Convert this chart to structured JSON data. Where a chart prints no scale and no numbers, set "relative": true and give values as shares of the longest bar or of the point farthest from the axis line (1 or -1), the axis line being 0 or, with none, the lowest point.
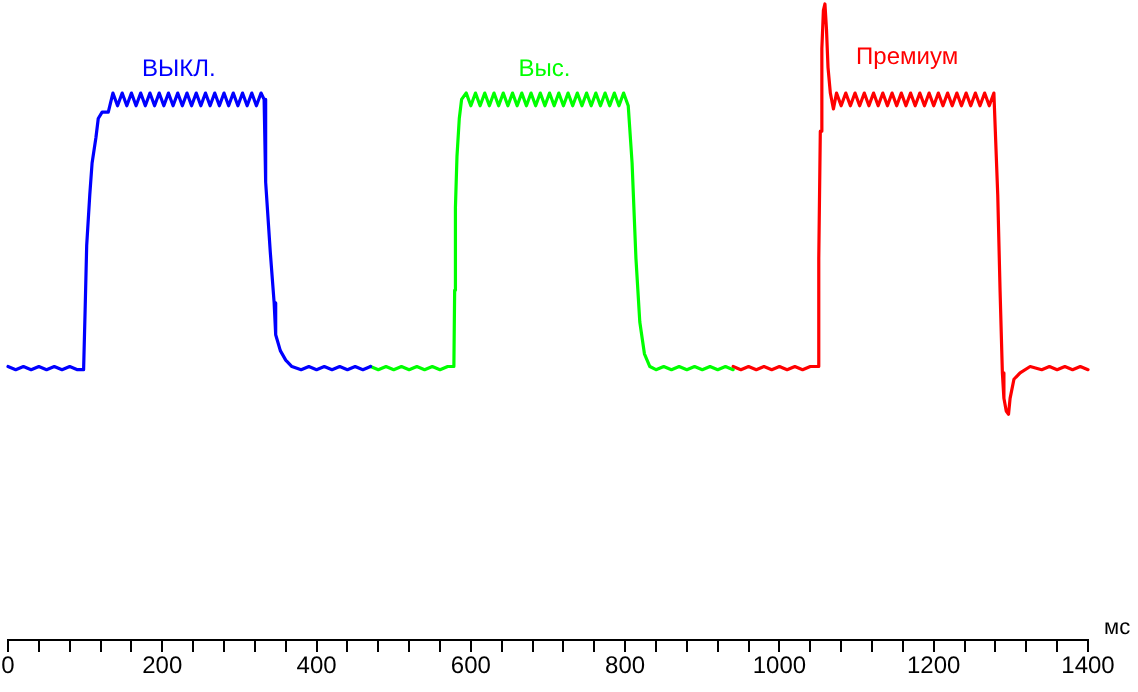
{
  "chart_data": {
    "type": "line",
    "relative": true,
    "marker": "none",
    "xlabel": "мс",
    "xlim": [
      0,
      1400
    ],
    "xticks": [
      0,
      {
        "value": 40,
        "label": null
      },
      {
        "value": 80,
        "label": null
      },
      {
        "value": 120,
        "label": null
      },
      {
        "value": 160,
        "label": null
      },
      200,
      {
        "value": 240,
        "label": null
      },
      {
        "value": 280,
        "label": null
      },
      {
        "value": 320,
        "label": null
      },
      {
        "value": 360,
        "label": null
      },
      400,
      {
        "value": 440,
        "label": null
      },
      {
        "value": 480,
        "label": null
      },
      {
        "value": 520,
        "label": null
      },
      {
        "value": 560,
        "label": null
      },
      600,
      {
        "value": 640,
        "label": null
      },
      {
        "value": 680,
        "label": null
      },
      {
        "value": 720,
        "label": null
      },
      {
        "value": 760,
        "label": null
      },
      800,
      {
        "value": 840,
        "label": null
      },
      {
        "value": 880,
        "label": null
      },
      {
        "value": 920,
        "label": null
      },
      {
        "value": 960,
        "label": null
      },
      1000,
      {
        "value": 1040,
        "label": null
      },
      {
        "value": 1080,
        "label": null
      },
      {
        "value": 1120,
        "label": null
      },
      {
        "value": 1160,
        "label": null
      },
      1200,
      {
        "value": 1240,
        "label": null
      },
      {
        "value": 1280,
        "label": null
      },
      {
        "value": 1320,
        "label": null
      },
      {
        "value": 1360,
        "label": null
      },
      1400
    ],
    "series": [
      {
        "name": "ВЫКЛ.",
        "color": "#0000ff",
        "x": [
          0,
          10,
          20,
          30,
          40,
          50,
          60,
          70,
          80,
          90,
          98,
          100,
          102,
          106,
          109,
          114,
          117,
          122,
          130,
          136,
          142,
          148,
          154,
          160,
          166,
          172,
          178,
          184,
          190,
          196,
          202,
          208,
          214,
          220,
          226,
          232,
          238,
          244,
          250,
          256,
          262,
          268,
          274,
          280,
          286,
          292,
          298,
          304,
          310,
          316,
          322,
          328,
          332,
          334,
          340,
          345,
          347,
          353,
          360,
          368,
          380,
          390,
          400,
          410,
          420,
          430,
          440,
          450,
          460,
          470
        ],
        "values": [
          0.43,
          0.425,
          0.43,
          0.425,
          0.43,
          0.425,
          0.43,
          0.425,
          0.43,
          0.425,
          0.425,
          0.52,
          0.62,
          0.7,
          0.75,
          0.79,
          0.82,
          0.83,
          0.83,
          0.86,
          0.84,
          0.86,
          0.84,
          0.86,
          0.84,
          0.86,
          0.84,
          0.86,
          0.84,
          0.86,
          0.84,
          0.86,
          0.84,
          0.86,
          0.84,
          0.86,
          0.84,
          0.86,
          0.84,
          0.86,
          0.84,
          0.86,
          0.84,
          0.86,
          0.84,
          0.86,
          0.84,
          0.86,
          0.84,
          0.86,
          0.84,
          0.86,
          0.85,
          0.72,
          0.61,
          0.53,
          0.48,
          0.455,
          0.44,
          0.43,
          0.425,
          0.43,
          0.425,
          0.43,
          0.425,
          0.43,
          0.425,
          0.43,
          0.425,
          0.43
        ]
      },
      {
        "name": "Выс.",
        "color": "#00ff00",
        "x": [
          470,
          480,
          490,
          500,
          510,
          520,
          530,
          540,
          550,
          560,
          570,
          578,
          579,
          580,
          582,
          585,
          588,
          594,
          600,
          606,
          612,
          618,
          624,
          630,
          636,
          642,
          648,
          654,
          660,
          666,
          672,
          678,
          684,
          690,
          696,
          702,
          708,
          714,
          720,
          726,
          732,
          738,
          744,
          750,
          756,
          762,
          768,
          774,
          780,
          786,
          792,
          798,
          804,
          809,
          814,
          819,
          825,
          832,
          840,
          850,
          860,
          870,
          880,
          890,
          900,
          910,
          920,
          930,
          940
        ],
        "values": [
          0.43,
          0.425,
          0.43,
          0.425,
          0.43,
          0.425,
          0.43,
          0.425,
          0.43,
          0.425,
          0.43,
          0.43,
          0.55,
          0.68,
          0.76,
          0.82,
          0.85,
          0.86,
          0.84,
          0.86,
          0.84,
          0.86,
          0.84,
          0.86,
          0.84,
          0.86,
          0.84,
          0.86,
          0.84,
          0.86,
          0.84,
          0.86,
          0.84,
          0.86,
          0.84,
          0.86,
          0.84,
          0.86,
          0.84,
          0.86,
          0.84,
          0.86,
          0.84,
          0.86,
          0.84,
          0.86,
          0.84,
          0.86,
          0.84,
          0.86,
          0.84,
          0.86,
          0.84,
          0.75,
          0.6,
          0.5,
          0.45,
          0.43,
          0.425,
          0.43,
          0.425,
          0.43,
          0.425,
          0.43,
          0.425,
          0.43,
          0.425,
          0.43,
          0.425
        ]
      },
      {
        "name": "Премиум",
        "color": "#ff0000",
        "x": [
          940,
          950,
          960,
          970,
          980,
          990,
          1000,
          1010,
          1020,
          1030,
          1040,
          1050,
          1051,
          1053,
          1055,
          1057,
          1059,
          1061,
          1063,
          1066,
          1070,
          1074,
          1080,
          1086,
          1092,
          1098,
          1104,
          1110,
          1116,
          1122,
          1128,
          1134,
          1140,
          1146,
          1152,
          1158,
          1164,
          1170,
          1176,
          1182,
          1188,
          1194,
          1200,
          1206,
          1212,
          1218,
          1224,
          1230,
          1236,
          1242,
          1248,
          1254,
          1260,
          1266,
          1272,
          1278,
          1283,
          1286,
          1289,
          1291,
          1294,
          1297,
          1299,
          1304,
          1312,
          1325,
          1340,
          1350,
          1360,
          1370,
          1380,
          1390,
          1400
        ],
        "values": [
          0.43,
          0.425,
          0.43,
          0.425,
          0.43,
          0.425,
          0.43,
          0.425,
          0.43,
          0.425,
          0.43,
          0.43,
          0.6,
          0.8,
          0.93,
          0.99,
          1,
          0.96,
          0.9,
          0.86,
          0.835,
          0.86,
          0.84,
          0.86,
          0.84,
          0.86,
          0.84,
          0.86,
          0.84,
          0.86,
          0.84,
          0.86,
          0.84,
          0.86,
          0.84,
          0.86,
          0.84,
          0.86,
          0.84,
          0.86,
          0.84,
          0.86,
          0.84,
          0.86,
          0.84,
          0.86,
          0.84,
          0.86,
          0.84,
          0.86,
          0.84,
          0.86,
          0.84,
          0.86,
          0.84,
          0.86,
          0.7,
          0.55,
          0.42,
          0.38,
          0.36,
          0.355,
          0.38,
          0.41,
          0.42,
          0.43,
          0.425,
          0.43,
          0.425,
          0.43,
          0.425,
          0.43,
          0.425
        ]
      }
    ]
  }
}
